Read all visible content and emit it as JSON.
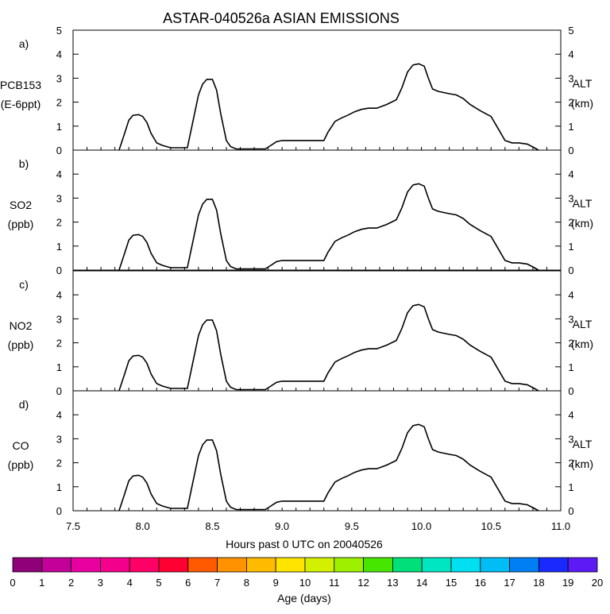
{
  "chart_data": {
    "type": "area",
    "title": "ASTAR-040526a ASIAN EMISSIONS",
    "xlabel": "Hours past 0 UTC on 20040526",
    "xlim": [
      7.5,
      11.0
    ],
    "x_ticks": [
      "7.5",
      "8.0",
      "8.5",
      "9.0",
      "9.5",
      "10.0",
      "10.5",
      "11.0"
    ],
    "y_ticks": [
      "0",
      "1",
      "2",
      "3",
      "4",
      "5"
    ],
    "panels": [
      {
        "letter": "a)",
        "species": "PCB153",
        "units": "(E-6ppt)",
        "ylim": [
          0,
          5
        ],
        "right_label": "ALT",
        "right_units": "(km)",
        "show_top_tick": true
      },
      {
        "letter": "b)",
        "species": "SO2",
        "units": "(ppb)",
        "ylim": [
          0,
          5
        ],
        "right_label": "ALT",
        "right_units": "(km)",
        "show_top_tick": false
      },
      {
        "letter": "c)",
        "species": "NO2",
        "units": "(ppb)",
        "ylim": [
          0,
          5
        ],
        "right_label": "ALT",
        "right_units": "(km)",
        "show_top_tick": false
      },
      {
        "letter": "d)",
        "species": "CO",
        "units": "(ppb)",
        "ylim": [
          0,
          5
        ],
        "right_label": "ALT",
        "right_units": "(km)",
        "show_top_tick": false
      }
    ],
    "altitude_km": {
      "x": [
        7.83,
        7.87,
        7.9,
        7.93,
        7.97,
        8.0,
        8.03,
        8.06,
        8.1,
        8.14,
        8.2,
        8.32,
        8.36,
        8.4,
        8.43,
        8.46,
        8.5,
        8.53,
        8.56,
        8.6,
        8.63,
        8.67,
        8.7,
        8.88,
        8.92,
        8.96,
        9.0,
        9.3,
        9.33,
        9.38,
        9.43,
        9.47,
        9.52,
        9.57,
        9.62,
        9.68,
        9.75,
        9.82,
        9.86,
        9.9,
        9.94,
        9.98,
        10.02,
        10.05,
        10.08,
        10.12,
        10.16,
        10.2,
        10.25,
        10.3,
        10.35,
        10.42,
        10.5,
        10.55,
        10.6,
        10.65,
        10.7,
        10.76,
        10.81,
        10.84
      ],
      "y": [
        0.0,
        0.7,
        1.25,
        1.45,
        1.48,
        1.4,
        1.15,
        0.7,
        0.3,
        0.2,
        0.1,
        0.1,
        1.2,
        2.3,
        2.75,
        2.95,
        2.95,
        2.5,
        1.5,
        0.4,
        0.15,
        0.05,
        0.05,
        0.05,
        0.2,
        0.35,
        0.4,
        0.4,
        0.75,
        1.2,
        1.35,
        1.45,
        1.6,
        1.7,
        1.75,
        1.75,
        1.9,
        2.1,
        2.6,
        3.25,
        3.55,
        3.6,
        3.5,
        3.0,
        2.55,
        2.45,
        2.4,
        2.35,
        2.3,
        2.15,
        1.9,
        1.65,
        1.4,
        0.9,
        0.4,
        0.3,
        0.3,
        0.25,
        0.1,
        0.0
      ]
    },
    "colorbar": {
      "label": "Age (days)",
      "tick_labels": [
        "0",
        "1",
        "2",
        "3",
        "4",
        "5",
        "6",
        "7",
        "8",
        "9",
        "10",
        "11",
        "12",
        "13",
        "14",
        "15",
        "16",
        "17",
        "18",
        "19",
        "20"
      ],
      "colors": [
        "#8f0079",
        "#c20099",
        "#e8009f",
        "#f5008d",
        "#ff0066",
        "#ff0033",
        "#ff5a00",
        "#ff9200",
        "#ffbb00",
        "#ffe400",
        "#d2f000",
        "#9cf000",
        "#47e600",
        "#00e07a",
        "#00e6c2",
        "#00e0f0",
        "#00bdf5",
        "#007ff5",
        "#1a2aff",
        "#5e1af5"
      ]
    }
  }
}
